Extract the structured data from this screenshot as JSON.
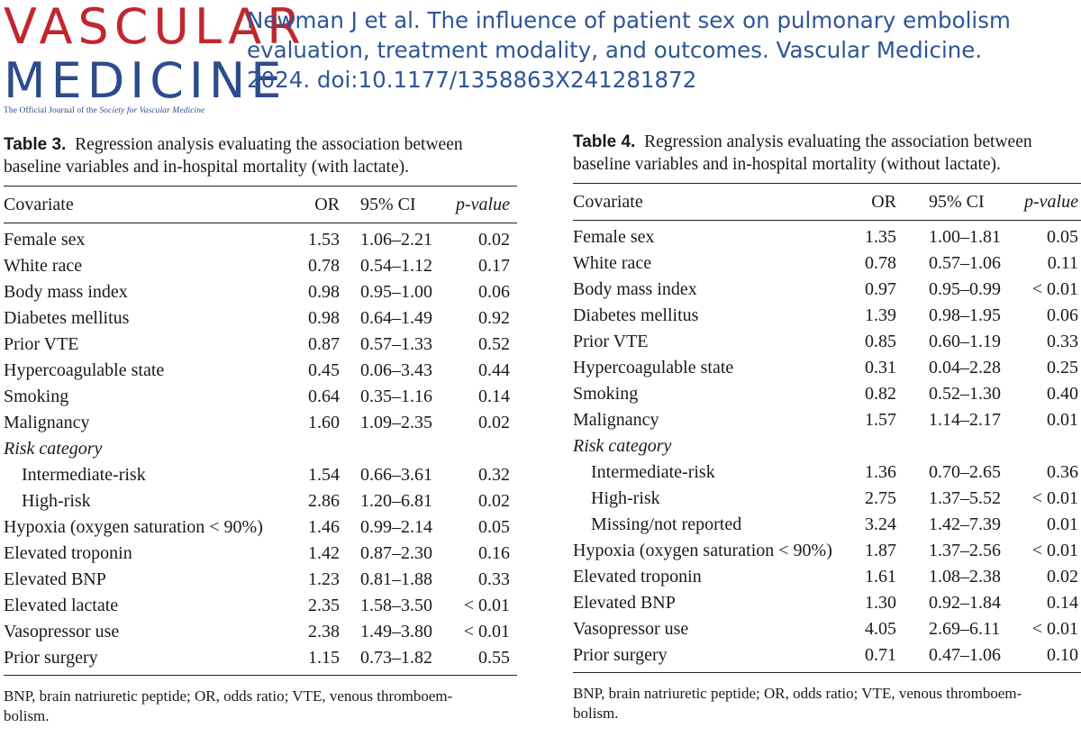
{
  "logo": {
    "line1": "VASCULAR",
    "line2": "MEDICINE",
    "tagline_prefix": "The Official Journal of the ",
    "tagline_society": "Society for Vascular Medicine"
  },
  "citation": {
    "line1": "Newman J et al. The influence of patient sex on pulmonary embolism",
    "line2": "evaluation, treatment modality, and outcomes. Vascular Medicine.",
    "line3": "2024. doi:10.1177/1358863X241281872"
  },
  "table3": {
    "label": "Table 3.",
    "caption_line1": "Regression analysis evaluating the association between",
    "caption_line2": "baseline variables and in-hospital mortality (with lactate).",
    "headers": {
      "covariate": "Covariate",
      "or": "OR",
      "ci": "95% CI",
      "p": "p-value"
    },
    "rows": [
      {
        "covariate": "Female sex",
        "or": "1.53",
        "ci": "1.06–2.21",
        "p": "0.02"
      },
      {
        "covariate": "White race",
        "or": "0.78",
        "ci": "0.54–1.12",
        "p": "0.17"
      },
      {
        "covariate": "Body mass index",
        "or": "0.98",
        "ci": "0.95–1.00",
        "p": "0.06"
      },
      {
        "covariate": "Diabetes mellitus",
        "or": "0.98",
        "ci": "0.64–1.49",
        "p": "0.92"
      },
      {
        "covariate": "Prior VTE",
        "or": "0.87",
        "ci": "0.57–1.33",
        "p": "0.52"
      },
      {
        "covariate": "Hypercoagulable state",
        "or": "0.45",
        "ci": "0.06–3.43",
        "p": "0.44"
      },
      {
        "covariate": "Smoking",
        "or": "0.64",
        "ci": "0.35–1.16",
        "p": "0.14"
      },
      {
        "covariate": "Malignancy",
        "or": "1.60",
        "ci": "1.09–2.35",
        "p": "0.02"
      },
      {
        "covariate": "Risk category",
        "or": "",
        "ci": "",
        "p": ""
      },
      {
        "covariate": "Intermediate-risk",
        "or": "1.54",
        "ci": "0.66–3.61",
        "p": "0.32"
      },
      {
        "covariate": "High-risk",
        "or": "2.86",
        "ci": "1.20–6.81",
        "p": "0.02"
      },
      {
        "covariate": "Hypoxia (oxygen saturation < 90%)",
        "or": "1.46",
        "ci": "0.99–2.14",
        "p": "0.05"
      },
      {
        "covariate": "Elevated troponin",
        "or": "1.42",
        "ci": "0.87–2.30",
        "p": "0.16"
      },
      {
        "covariate": "Elevated BNP",
        "or": "1.23",
        "ci": "0.81–1.88",
        "p": "0.33"
      },
      {
        "covariate": "Elevated lactate",
        "or": "2.35",
        "ci": "1.58–3.50",
        "p": "< 0.01"
      },
      {
        "covariate": "Vasopressor use",
        "or": "2.38",
        "ci": "1.49–3.80",
        "p": "< 0.01"
      },
      {
        "covariate": "Prior surgery",
        "or": "1.15",
        "ci": "0.73–1.82",
        "p": "0.55"
      }
    ],
    "footnote_line1": "BNP, brain natriuretic peptide; OR, odds ratio; VTE, venous thromboem-",
    "footnote_line2": "bolism."
  },
  "table4": {
    "label": "Table 4.",
    "caption_line1": "Regression analysis evaluating the association between",
    "caption_line2": "baseline variables and in-hospital mortality (without lactate).",
    "headers": {
      "covariate": "Covariate",
      "or": "OR",
      "ci": "95% CI",
      "p": "p-value"
    },
    "rows": [
      {
        "covariate": "Female sex",
        "or": "1.35",
        "ci": "1.00–1.81",
        "p": "0.05"
      },
      {
        "covariate": "White race",
        "or": "0.78",
        "ci": "0.57–1.06",
        "p": "0.11"
      },
      {
        "covariate": "Body mass index",
        "or": "0.97",
        "ci": "0.95–0.99",
        "p": "< 0.01"
      },
      {
        "covariate": "Diabetes mellitus",
        "or": "1.39",
        "ci": "0.98–1.95",
        "p": "0.06"
      },
      {
        "covariate": "Prior VTE",
        "or": "0.85",
        "ci": "0.60–1.19",
        "p": "0.33"
      },
      {
        "covariate": "Hypercoagulable state",
        "or": "0.31",
        "ci": "0.04–2.28",
        "p": "0.25"
      },
      {
        "covariate": "Smoking",
        "or": "0.82",
        "ci": "0.52–1.30",
        "p": "0.40"
      },
      {
        "covariate": "Malignancy",
        "or": "1.57",
        "ci": "1.14–2.17",
        "p": "0.01"
      },
      {
        "covariate": "Risk category",
        "or": "",
        "ci": "",
        "p": ""
      },
      {
        "covariate": "Intermediate-risk",
        "or": "1.36",
        "ci": "0.70–2.65",
        "p": "0.36"
      },
      {
        "covariate": "High-risk",
        "or": "2.75",
        "ci": "1.37–5.52",
        "p": "< 0.01"
      },
      {
        "covariate": "Missing/not reported",
        "or": "3.24",
        "ci": "1.42–7.39",
        "p": "0.01"
      },
      {
        "covariate": "Hypoxia (oxygen saturation < 90%)",
        "or": "1.87",
        "ci": "1.37–2.56",
        "p": "< 0.01"
      },
      {
        "covariate": "Elevated troponin",
        "or": "1.61",
        "ci": "1.08–2.38",
        "p": "0.02"
      },
      {
        "covariate": "Elevated BNP",
        "or": "1.30",
        "ci": "0.92–1.84",
        "p": "0.14"
      },
      {
        "covariate": "Vasopressor use",
        "or": "4.05",
        "ci": "2.69–6.11",
        "p": "< 0.01"
      },
      {
        "covariate": "Prior surgery",
        "or": "0.71",
        "ci": "0.47–1.06",
        "p": "0.10"
      }
    ],
    "footnote_line1": "BNP, brain natriuretic peptide; OR, odds ratio; VTE, venous thromboem-",
    "footnote_line2": "bolism."
  }
}
